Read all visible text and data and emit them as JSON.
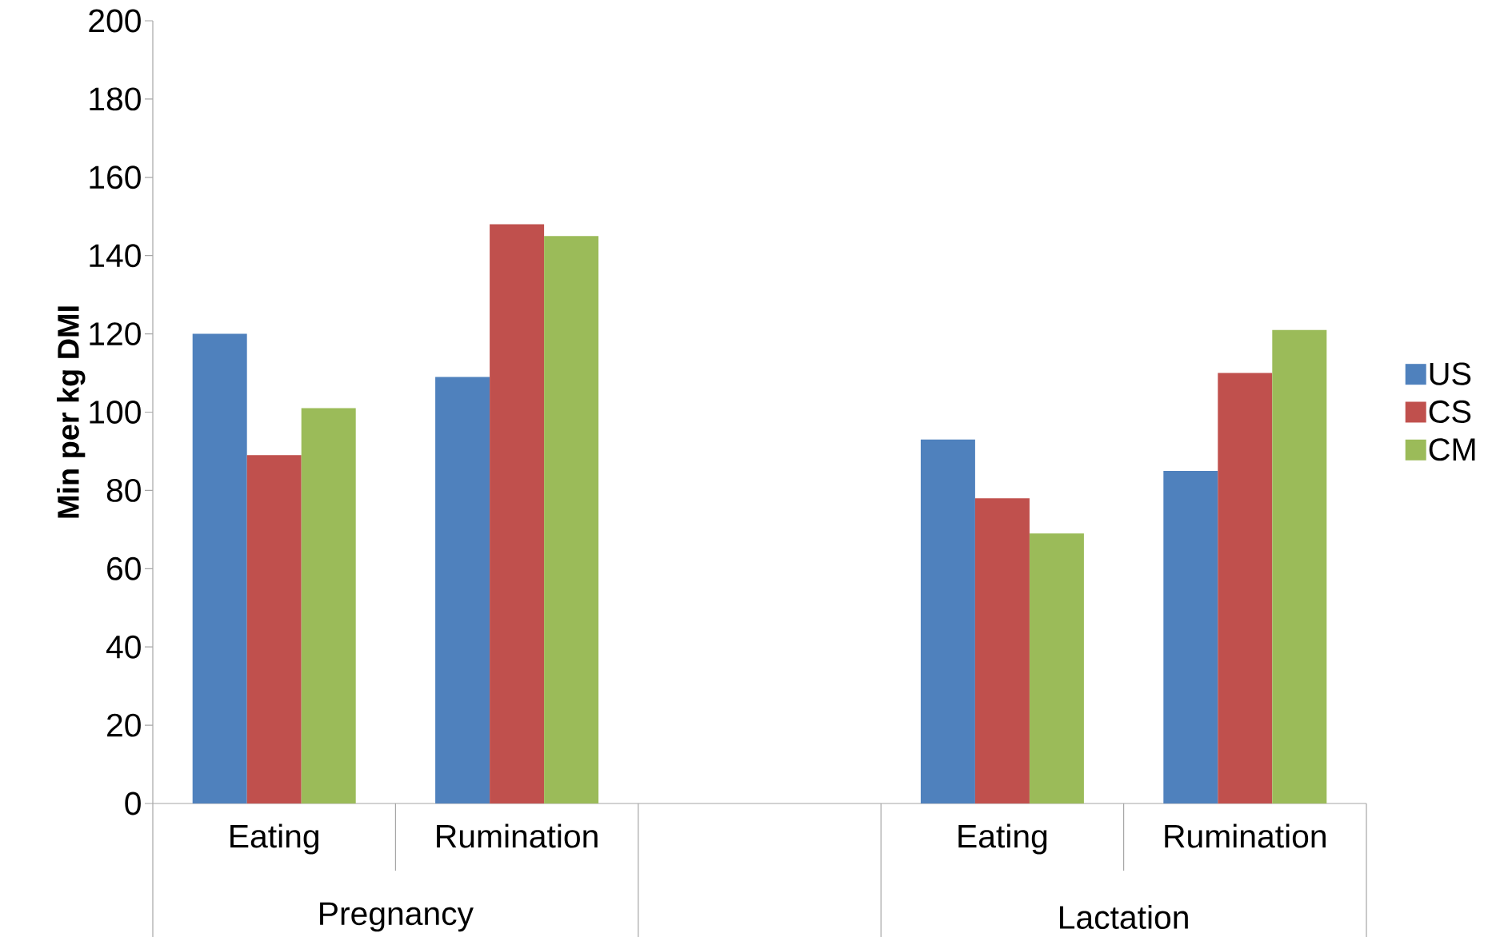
{
  "chart_data": {
    "type": "bar",
    "ylabel": "Min per kg DMI",
    "categories": [
      "Eating",
      "Rumination",
      null,
      "Eating",
      "Rumination"
    ],
    "series": [
      {
        "name": "US",
        "color": "#4f81bd",
        "values": [
          120,
          109,
          null,
          93,
          85
        ]
      },
      {
        "name": "CS",
        "color": "#c0504d",
        "values": [
          89,
          148,
          null,
          78,
          110
        ]
      },
      {
        "name": "CM",
        "color": "#9bbb59",
        "values": [
          101,
          145,
          null,
          69,
          121
        ]
      }
    ],
    "ylim": [
      0,
      200
    ],
    "yticks": [
      0,
      20,
      40,
      60,
      80,
      100,
      120,
      140,
      160,
      180,
      200
    ],
    "legend": "right",
    "annotations": [
      "Pregnancy",
      "Lactation"
    ]
  }
}
